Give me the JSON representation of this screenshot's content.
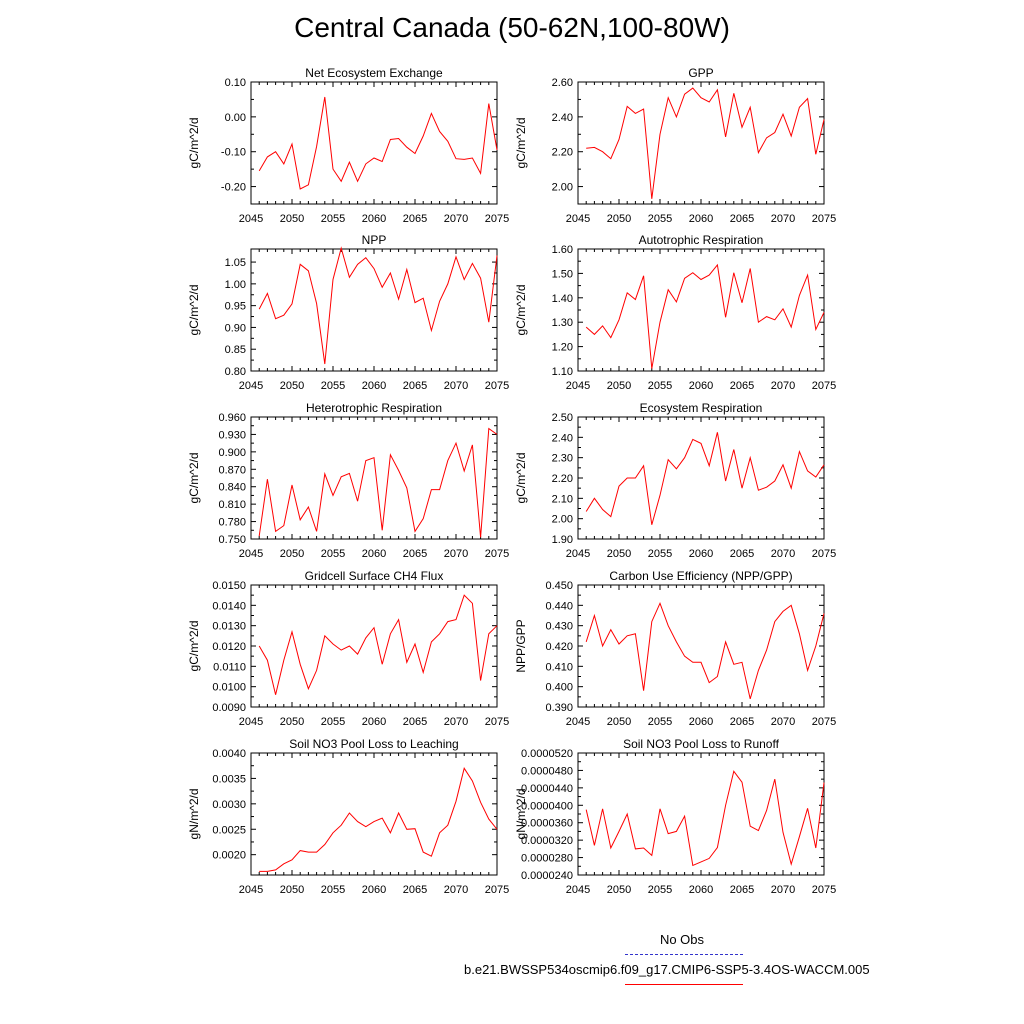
{
  "title": "Central Canada (50-62N,100-80W)",
  "legend": {
    "obs_label": "No Obs",
    "obs_color": "#3333cc",
    "model_label": "b.e21.BWSSP534oscmip6.f09_g17.CMIP6-SSP5-3.4OS-WACCM.005",
    "model_color": "#ff0000"
  },
  "chart_data": [
    {
      "type": "line",
      "title": "Net Ecosystem Exchange",
      "ylabel": "gC/m^2/d",
      "xlim": [
        2045,
        2075
      ],
      "ylim": [
        -0.25,
        0.1
      ],
      "yticks": [
        "0.10",
        "0.00",
        "-0.10",
        "-0.20"
      ],
      "ytick_values": [
        0.1,
        0.0,
        -0.1,
        -0.2
      ],
      "xticks": [
        2045,
        2050,
        2055,
        2060,
        2065,
        2070,
        2075
      ],
      "x": [
        2046,
        2047,
        2048,
        2049,
        2050,
        2051,
        2052,
        2053,
        2054,
        2055,
        2056,
        2057,
        2058,
        2059,
        2060,
        2061,
        2062,
        2063,
        2064,
        2065,
        2066,
        2067,
        2068,
        2069,
        2070,
        2071,
        2072,
        2073,
        2074,
        2075
      ],
      "series": [
        {
          "values": [
            -0.155,
            -0.115,
            -0.1,
            -0.135,
            -0.078,
            -0.207,
            -0.195,
            -0.085,
            0.057,
            -0.15,
            -0.185,
            -0.13,
            -0.185,
            -0.135,
            -0.118,
            -0.128,
            -0.065,
            -0.062,
            -0.087,
            -0.105,
            -0.055,
            0.01,
            -0.042,
            -0.07,
            -0.12,
            -0.122,
            -0.118,
            -0.162,
            0.038,
            -0.095
          ]
        }
      ]
    },
    {
      "type": "line",
      "title": "GPP",
      "ylabel": "gC/m^2/d",
      "xlim": [
        2045,
        2075
      ],
      "ylim": [
        1.9,
        2.6
      ],
      "yticks": [
        "2.60",
        "2.40",
        "2.20",
        "2.00"
      ],
      "ytick_values": [
        2.6,
        2.4,
        2.2,
        2.0
      ],
      "xticks": [
        2045,
        2050,
        2055,
        2060,
        2065,
        2070,
        2075
      ],
      "x": [
        2046,
        2047,
        2048,
        2049,
        2050,
        2051,
        2052,
        2053,
        2054,
        2055,
        2056,
        2057,
        2058,
        2059,
        2060,
        2061,
        2062,
        2063,
        2064,
        2065,
        2066,
        2067,
        2068,
        2069,
        2070,
        2071,
        2072,
        2073,
        2074,
        2075
      ],
      "series": [
        {
          "values": [
            2.22,
            2.225,
            2.2,
            2.16,
            2.27,
            2.46,
            2.42,
            2.445,
            1.93,
            2.3,
            2.51,
            2.4,
            2.53,
            2.565,
            2.51,
            2.485,
            2.555,
            2.285,
            2.535,
            2.34,
            2.455,
            2.195,
            2.28,
            2.31,
            2.415,
            2.29,
            2.455,
            2.505,
            2.185,
            2.385
          ]
        }
      ]
    },
    {
      "type": "line",
      "title": "NPP",
      "ylabel": "gC/m^2/d",
      "xlim": [
        2045,
        2075
      ],
      "ylim": [
        0.8,
        1.08
      ],
      "yticks": [
        "1.05",
        "1.00",
        "0.95",
        "0.90",
        "0.85",
        "0.80"
      ],
      "ytick_values": [
        1.05,
        1.0,
        0.95,
        0.9,
        0.85,
        0.8
      ],
      "xticks": [
        2045,
        2050,
        2055,
        2060,
        2065,
        2070,
        2075
      ],
      "x": [
        2046,
        2047,
        2048,
        2049,
        2050,
        2051,
        2052,
        2053,
        2054,
        2055,
        2056,
        2057,
        2058,
        2059,
        2060,
        2061,
        2062,
        2063,
        2064,
        2065,
        2066,
        2067,
        2068,
        2069,
        2070,
        2071,
        2072,
        2073,
        2074,
        2075
      ],
      "series": [
        {
          "values": [
            0.942,
            0.978,
            0.92,
            0.928,
            0.954,
            1.045,
            1.03,
            0.955,
            0.816,
            1.01,
            1.082,
            1.015,
            1.045,
            1.06,
            1.035,
            0.992,
            1.025,
            0.965,
            1.033,
            0.957,
            0.967,
            0.893,
            0.96,
            1.0,
            1.062,
            1.01,
            1.047,
            1.013,
            0.912,
            1.065
          ]
        }
      ]
    },
    {
      "type": "line",
      "title": "Autotrophic Respiration",
      "ylabel": "gC/m^2/d",
      "xlim": [
        2045,
        2075
      ],
      "ylim": [
        1.1,
        1.6
      ],
      "yticks": [
        "1.60",
        "1.50",
        "1.40",
        "1.30",
        "1.20",
        "1.10"
      ],
      "ytick_values": [
        1.6,
        1.5,
        1.4,
        1.3,
        1.2,
        1.1
      ],
      "xticks": [
        2045,
        2050,
        2055,
        2060,
        2065,
        2070,
        2075
      ],
      "x": [
        2046,
        2047,
        2048,
        2049,
        2050,
        2051,
        2052,
        2053,
        2054,
        2055,
        2056,
        2057,
        2058,
        2059,
        2060,
        2061,
        2062,
        2063,
        2064,
        2065,
        2066,
        2067,
        2068,
        2069,
        2070,
        2071,
        2072,
        2073,
        2074,
        2075
      ],
      "series": [
        {
          "values": [
            1.28,
            1.25,
            1.285,
            1.237,
            1.31,
            1.42,
            1.393,
            1.49,
            1.11,
            1.3,
            1.433,
            1.383,
            1.48,
            1.503,
            1.475,
            1.493,
            1.535,
            1.32,
            1.503,
            1.38,
            1.52,
            1.3,
            1.323,
            1.31,
            1.355,
            1.28,
            1.41,
            1.493,
            1.27,
            1.34
          ]
        }
      ]
    },
    {
      "type": "line",
      "title": "Heterotrophic Respiration",
      "ylabel": "gC/m^2/d",
      "xlim": [
        2045,
        2075
      ],
      "ylim": [
        0.75,
        0.96
      ],
      "yticks": [
        "0.960",
        "0.930",
        "0.900",
        "0.870",
        "0.840",
        "0.810",
        "0.780",
        "0.750"
      ],
      "ytick_values": [
        0.96,
        0.93,
        0.9,
        0.87,
        0.84,
        0.81,
        0.78,
        0.75
      ],
      "xticks": [
        2045,
        2050,
        2055,
        2060,
        2065,
        2070,
        2075
      ],
      "x": [
        2046,
        2047,
        2048,
        2049,
        2050,
        2051,
        2052,
        2053,
        2054,
        2055,
        2056,
        2057,
        2058,
        2059,
        2060,
        2061,
        2062,
        2063,
        2064,
        2065,
        2066,
        2067,
        2068,
        2069,
        2070,
        2071,
        2072,
        2073,
        2074,
        2075
      ],
      "series": [
        {
          "values": [
            0.755,
            0.853,
            0.763,
            0.773,
            0.843,
            0.783,
            0.805,
            0.763,
            0.862,
            0.825,
            0.857,
            0.863,
            0.815,
            0.885,
            0.89,
            0.765,
            0.895,
            0.868,
            0.838,
            0.763,
            0.785,
            0.835,
            0.835,
            0.885,
            0.915,
            0.867,
            0.912,
            0.753,
            0.94,
            0.93
          ]
        }
      ]
    },
    {
      "type": "line",
      "title": "Ecosystem Respiration",
      "ylabel": "gC/m^2/d",
      "xlim": [
        2045,
        2075
      ],
      "ylim": [
        1.9,
        2.5
      ],
      "yticks": [
        "2.50",
        "2.40",
        "2.30",
        "2.20",
        "2.10",
        "2.00",
        "1.90"
      ],
      "ytick_values": [
        2.5,
        2.4,
        2.3,
        2.2,
        2.1,
        2.0,
        1.9
      ],
      "xticks": [
        2045,
        2050,
        2055,
        2060,
        2065,
        2070,
        2075
      ],
      "x": [
        2046,
        2047,
        2048,
        2049,
        2050,
        2051,
        2052,
        2053,
        2054,
        2055,
        2056,
        2057,
        2058,
        2059,
        2060,
        2061,
        2062,
        2063,
        2064,
        2065,
        2066,
        2067,
        2068,
        2069,
        2070,
        2071,
        2072,
        2073,
        2074,
        2075
      ],
      "series": [
        {
          "values": [
            2.035,
            2.1,
            2.045,
            2.01,
            2.16,
            2.2,
            2.2,
            2.26,
            1.97,
            2.115,
            2.29,
            2.245,
            2.3,
            2.39,
            2.37,
            2.26,
            2.425,
            2.185,
            2.34,
            2.15,
            2.3,
            2.14,
            2.155,
            2.185,
            2.265,
            2.15,
            2.33,
            2.235,
            2.205,
            2.265
          ]
        }
      ]
    },
    {
      "type": "line",
      "title": "Gridcell Surface CH4 Flux",
      "ylabel": "gC/m^2/d",
      "xlim": [
        2045,
        2075
      ],
      "ylim": [
        0.009,
        0.015
      ],
      "yticks": [
        "0.0150",
        "0.0140",
        "0.0130",
        "0.0120",
        "0.0110",
        "0.0100",
        "0.0090"
      ],
      "ytick_values": [
        0.015,
        0.014,
        0.013,
        0.012,
        0.011,
        0.01,
        0.009
      ],
      "xticks": [
        2045,
        2050,
        2055,
        2060,
        2065,
        2070,
        2075
      ],
      "x": [
        2046,
        2047,
        2048,
        2049,
        2050,
        2051,
        2052,
        2053,
        2054,
        2055,
        2056,
        2057,
        2058,
        2059,
        2060,
        2061,
        2062,
        2063,
        2064,
        2065,
        2066,
        2067,
        2068,
        2069,
        2070,
        2071,
        2072,
        2073,
        2074,
        2075
      ],
      "series": [
        {
          "values": [
            0.012,
            0.0113,
            0.0096,
            0.0113,
            0.0127,
            0.0111,
            0.0099,
            0.0108,
            0.0125,
            0.0121,
            0.0118,
            0.012,
            0.0116,
            0.0124,
            0.0129,
            0.0111,
            0.0126,
            0.0133,
            0.0112,
            0.0121,
            0.0107,
            0.0122,
            0.0126,
            0.0132,
            0.0133,
            0.0145,
            0.0141,
            0.0103,
            0.0126,
            0.013
          ]
        }
      ]
    },
    {
      "type": "line",
      "title": "Carbon Use Efficiency (NPP/GPP)",
      "ylabel": "NPP/GPP",
      "xlim": [
        2045,
        2075
      ],
      "ylim": [
        0.39,
        0.45
      ],
      "yticks": [
        "0.450",
        "0.440",
        "0.430",
        "0.420",
        "0.410",
        "0.400",
        "0.390"
      ],
      "ytick_values": [
        0.45,
        0.44,
        0.43,
        0.42,
        0.41,
        0.4,
        0.39
      ],
      "xticks": [
        2045,
        2050,
        2055,
        2060,
        2065,
        2070,
        2075
      ],
      "x": [
        2046,
        2047,
        2048,
        2049,
        2050,
        2051,
        2052,
        2053,
        2054,
        2055,
        2056,
        2057,
        2058,
        2059,
        2060,
        2061,
        2062,
        2063,
        2064,
        2065,
        2066,
        2067,
        2068,
        2069,
        2070,
        2071,
        2072,
        2073,
        2074,
        2075
      ],
      "series": [
        {
          "values": [
            0.422,
            0.435,
            0.42,
            0.428,
            0.421,
            0.425,
            0.426,
            0.398,
            0.432,
            0.441,
            0.43,
            0.422,
            0.415,
            0.412,
            0.412,
            0.402,
            0.405,
            0.422,
            0.411,
            0.412,
            0.394,
            0.408,
            0.418,
            0.432,
            0.437,
            0.44,
            0.426,
            0.408,
            0.42,
            0.436
          ]
        }
      ]
    },
    {
      "type": "line",
      "title": "Soil NO3 Pool Loss to Leaching",
      "ylabel": "gN/m^2/d",
      "xlim": [
        2045,
        2075
      ],
      "ylim": [
        0.0016,
        0.004
      ],
      "yticks": [
        "0.0040",
        "0.0035",
        "0.0030",
        "0.0025",
        "0.0020"
      ],
      "ytick_values": [
        0.004,
        0.0035,
        0.003,
        0.0025,
        0.002
      ],
      "xticks": [
        2045,
        2050,
        2055,
        2060,
        2065,
        2070,
        2075
      ],
      "x": [
        2046,
        2047,
        2048,
        2049,
        2050,
        2051,
        2052,
        2053,
        2054,
        2055,
        2056,
        2057,
        2058,
        2059,
        2060,
        2061,
        2062,
        2063,
        2064,
        2065,
        2066,
        2067,
        2068,
        2069,
        2070,
        2071,
        2072,
        2073,
        2074,
        2075
      ],
      "series": [
        {
          "values": [
            0.00167,
            0.00167,
            0.0017,
            0.00182,
            0.0019,
            0.00208,
            0.00205,
            0.00205,
            0.0022,
            0.00243,
            0.00258,
            0.00282,
            0.00265,
            0.00255,
            0.00265,
            0.00272,
            0.00243,
            0.00282,
            0.0025,
            0.00251,
            0.00205,
            0.00197,
            0.00243,
            0.00258,
            0.00305,
            0.0037,
            0.00345,
            0.00303,
            0.0027,
            0.0025
          ]
        }
      ]
    },
    {
      "type": "line",
      "title": "Soil NO3 Pool Loss to Runoff",
      "ylabel": "gN/m^2/d",
      "xlim": [
        2045,
        2075
      ],
      "ylim": [
        2.4e-05,
        5.2e-05
      ],
      "yticks": [
        "0.0000520",
        "0.0000480",
        "0.0000440",
        "0.0000400",
        "0.0000360",
        "0.0000320",
        "0.0000280",
        "0.0000240"
      ],
      "ytick_values": [
        5.2e-05,
        4.8e-05,
        4.4e-05,
        4e-05,
        3.6e-05,
        3.2e-05,
        2.8e-05,
        2.4e-05
      ],
      "xticks": [
        2045,
        2050,
        2055,
        2060,
        2065,
        2070,
        2075
      ],
      "x": [
        2046,
        2047,
        2048,
        2049,
        2050,
        2051,
        2052,
        2053,
        2054,
        2055,
        2056,
        2057,
        2058,
        2059,
        2060,
        2061,
        2062,
        2063,
        2064,
        2065,
        2066,
        2067,
        2068,
        2069,
        2070,
        2071,
        2072,
        2073,
        2074,
        2075
      ],
      "series": [
        {
          "values": [
            3.9e-05,
            3.08e-05,
            3.92e-05,
            3.02e-05,
            3.4e-05,
            3.8e-05,
            3e-05,
            3.02e-05,
            2.85e-05,
            3.92e-05,
            3.35e-05,
            3.4e-05,
            3.75e-05,
            2.62e-05,
            2.7e-05,
            2.78e-05,
            3.03e-05,
            4e-05,
            4.78e-05,
            4.53e-05,
            3.52e-05,
            3.42e-05,
            3.88e-05,
            4.6e-05,
            3.38e-05,
            2.65e-05,
            3.28e-05,
            3.93e-05,
            3.02e-05,
            4.52e-05
          ]
        }
      ]
    }
  ]
}
